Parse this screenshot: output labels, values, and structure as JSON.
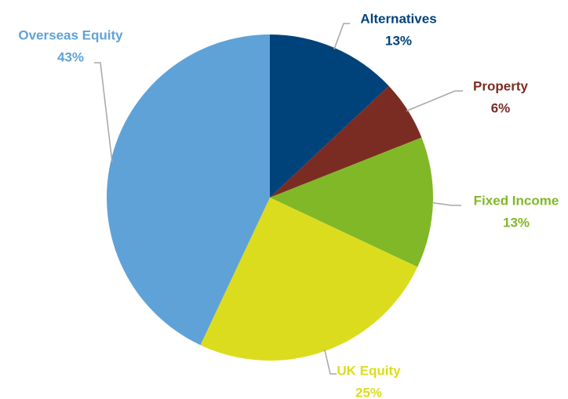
{
  "chart_data": {
    "type": "pie",
    "categories": [
      "Alternatives",
      "Property",
      "Fixed Income",
      "UK Equity",
      "Overseas Equity"
    ],
    "values": [
      13,
      6,
      13,
      25,
      43
    ],
    "value_labels": [
      "13%",
      "6%",
      "13%",
      "25%",
      "43%"
    ],
    "colors": [
      "#00427a",
      "#7b2c22",
      "#80b828",
      "#dcdc1e",
      "#5fa2d8"
    ]
  }
}
